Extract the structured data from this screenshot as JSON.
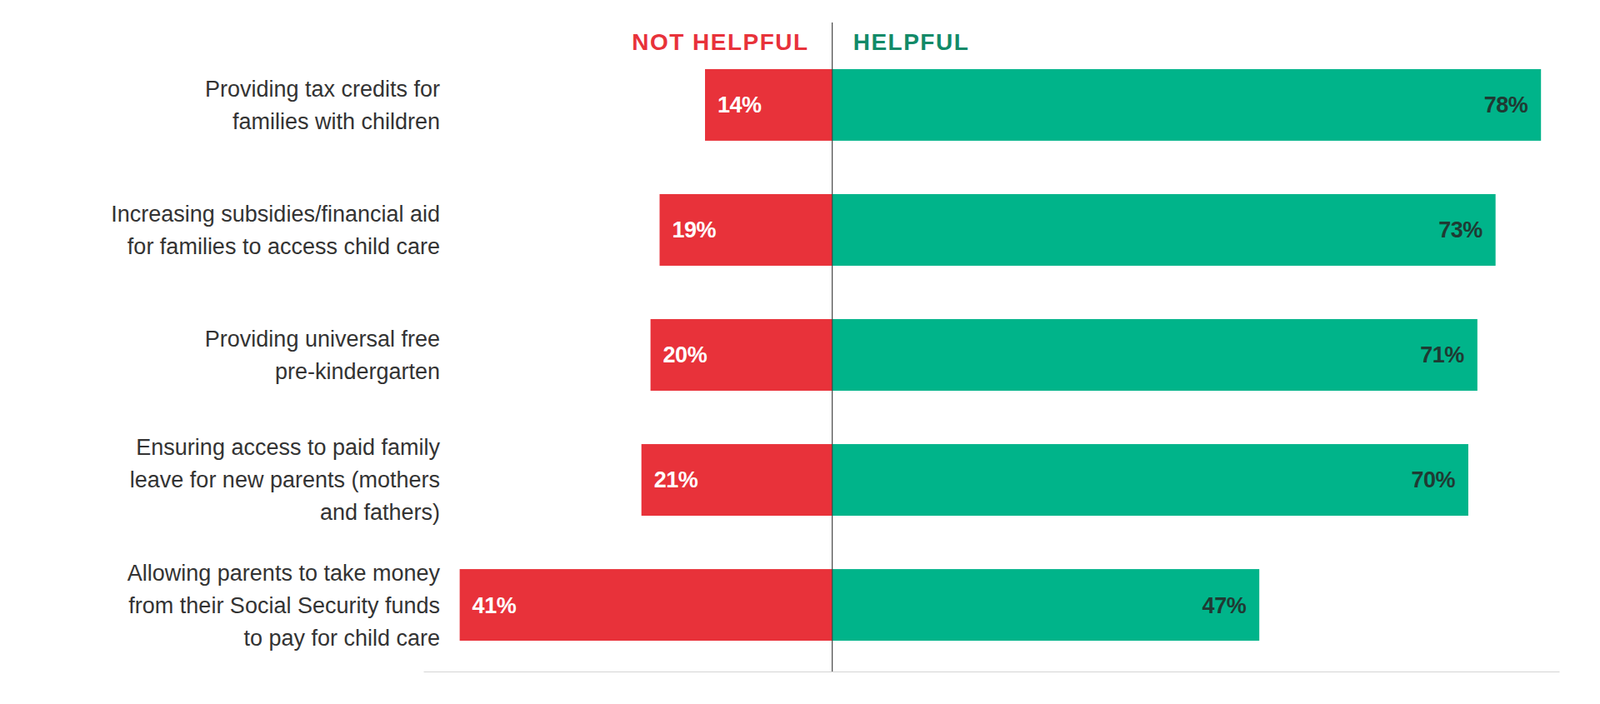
{
  "chart_data": {
    "type": "bar",
    "orientation": "horizontal",
    "categories": [
      "Providing tax credits for\nfamilies with children",
      "Increasing subsidies/financial aid\nfor families to access child care",
      "Providing universal free\npre-kindergarten",
      "Ensuring access to paid family\nleave for new parents (mothers\nand fathers)",
      "Allowing parents to take money\nfrom their Social Security funds\nto pay for child care"
    ],
    "series": [
      {
        "name": "NOT HELPFUL",
        "color": "#e8323a",
        "values": [
          14,
          19,
          20,
          21,
          41
        ],
        "value_labels": [
          "14%",
          "19%",
          "20%",
          "21%",
          "41%"
        ]
      },
      {
        "name": "HELPFUL",
        "color": "#00b48a",
        "values": [
          78,
          73,
          71,
          70,
          47
        ],
        "value_labels": [
          "78%",
          "73%",
          "71%",
          "70%",
          "47%"
        ]
      }
    ],
    "xlim": [
      -45,
      80
    ],
    "xticks": [
      0
    ],
    "grid": true,
    "data_labels": true,
    "tick_labels": false
  }
}
